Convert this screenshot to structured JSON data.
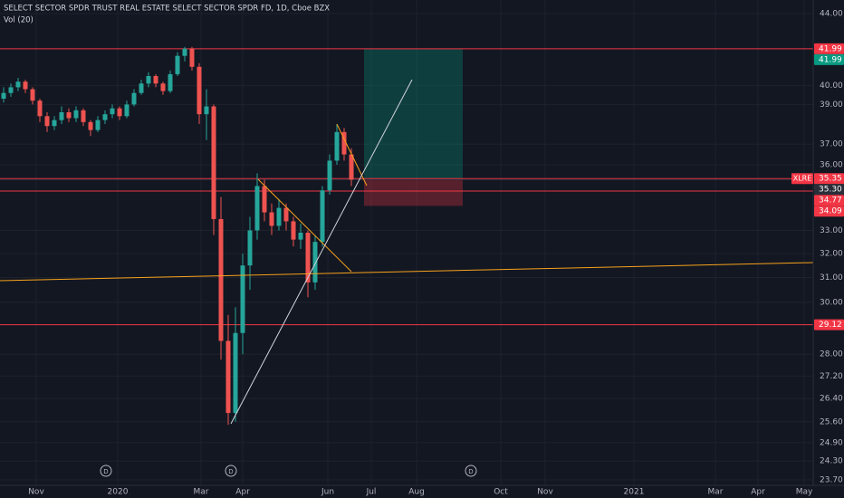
{
  "header": {
    "title": "SELECT SECTOR SPDR TRUST REAL ESTATE SELECT SECTOR SPDR FD, 1D, Cboe BZX",
    "indicator": "Vol (20)"
  },
  "chart_data": {
    "type": "candlestick",
    "log_scale": true,
    "grid": true,
    "up_color": "#26a69a",
    "down_color": "#ef5350",
    "ylim": [
      23.7,
      44
    ],
    "yticks": [
      {
        "value": 44,
        "label": "44.00"
      },
      {
        "value": 40,
        "label": "40.00"
      },
      {
        "value": 39,
        "label": "39.00"
      },
      {
        "value": 37,
        "label": "37.00"
      },
      {
        "value": 36,
        "label": "36.00"
      },
      {
        "value": 33,
        "label": "33.00"
      },
      {
        "value": 32,
        "label": "32.00"
      },
      {
        "value": 31,
        "label": "31.00"
      },
      {
        "value": 30,
        "label": "30.00"
      },
      {
        "value": 28,
        "label": "28.00"
      },
      {
        "value": 27.2,
        "label": "27.20"
      },
      {
        "value": 26.4,
        "label": "26.40"
      },
      {
        "value": 25.6,
        "label": "25.60"
      },
      {
        "value": 24.9,
        "label": "24.90"
      },
      {
        "value": 24.3,
        "label": "24.30"
      },
      {
        "value": 23.7,
        "label": "23.70"
      }
    ],
    "time_labels": [
      "Nov",
      "2020",
      "Mar",
      "Apr",
      "Jun",
      "Jul",
      "Aug",
      "Oct",
      "Nov",
      "2021",
      "Mar",
      "Apr",
      "May"
    ],
    "open": [
      39.3,
      39.6,
      39.9,
      40.2,
      39.8,
      39.2,
      38.4,
      37.9,
      38.2,
      38.6,
      38.3,
      38.7,
      38.1,
      37.7,
      38.2,
      38.5,
      38.8,
      38.4,
      39.0,
      39.6,
      40.1,
      40.5,
      40.1,
      39.7,
      40.6,
      41.6,
      42.0,
      41.0,
      38.5,
      38.9,
      33.5,
      28.5,
      25.9,
      28.8,
      31.5,
      33.0,
      35.0,
      33.8,
      33.2,
      34.0,
      33.4,
      32.6,
      32.9,
      30.8,
      32.5,
      34.8,
      36.2,
      37.6,
      36.5
    ],
    "high": [
      39.9,
      40.1,
      40.4,
      40.3,
      39.9,
      39.3,
      38.6,
      38.4,
      38.9,
      38.8,
      38.9,
      38.8,
      38.2,
      38.4,
      38.7,
      39.0,
      38.9,
      39.2,
      39.8,
      40.3,
      40.7,
      40.6,
      40.2,
      40.8,
      41.8,
      42.1,
      42.1,
      41.2,
      39.8,
      39.0,
      34.5,
      29.5,
      29.8,
      32.0,
      33.6,
      35.6,
      35.3,
      34.2,
      34.4,
      34.2,
      33.6,
      33.3,
      33.0,
      32.8,
      35.0,
      36.5,
      38.0,
      37.8,
      36.8
    ],
    "low": [
      39.1,
      39.4,
      39.7,
      39.6,
      39.0,
      38.1,
      37.6,
      37.7,
      38.0,
      38.1,
      38.1,
      37.9,
      37.4,
      37.6,
      38.0,
      38.3,
      38.2,
      38.3,
      38.9,
      39.5,
      39.9,
      39.9,
      39.5,
      39.6,
      40.5,
      41.3,
      40.8,
      38.0,
      37.2,
      32.8,
      27.8,
      25.5,
      25.6,
      28.0,
      30.5,
      32.6,
      33.4,
      32.8,
      33.0,
      33.0,
      32.3,
      32.2,
      30.2,
      30.5,
      32.3,
      34.6,
      36.0,
      36.2,
      35.0
    ],
    "close": [
      39.6,
      39.9,
      40.2,
      39.8,
      39.2,
      38.4,
      37.9,
      38.2,
      38.6,
      38.3,
      38.7,
      38.1,
      37.7,
      38.2,
      38.5,
      38.8,
      38.4,
      39.0,
      39.6,
      40.1,
      40.5,
      40.1,
      39.7,
      40.6,
      41.6,
      42.0,
      41.0,
      38.5,
      38.9,
      33.5,
      28.5,
      25.9,
      28.8,
      31.5,
      33.0,
      35.0,
      33.8,
      33.2,
      34.0,
      33.4,
      32.6,
      32.9,
      30.8,
      32.5,
      34.8,
      36.2,
      37.6,
      36.5,
      35.3
    ],
    "levels": [
      {
        "value": 41.99,
        "label": "41.99",
        "color": "#f23645",
        "line": true
      },
      {
        "value": 41.99,
        "label": "41.99",
        "color": "#089981"
      },
      {
        "value": 35.35,
        "label": "35.35",
        "symbol": "XLRE",
        "color": "#f23645",
        "line": true
      },
      {
        "value": 35.3,
        "label": "35.30",
        "color": "#2a2e39",
        "line": true
      },
      {
        "value": 34.77,
        "label": "34.77",
        "color": "#f23645",
        "line": true
      },
      {
        "value": 34.09,
        "label": "34.09",
        "color": "#f23645"
      },
      {
        "value": 29.12,
        "label": "29.12",
        "color": "#f23645",
        "line": true
      }
    ]
  }
}
